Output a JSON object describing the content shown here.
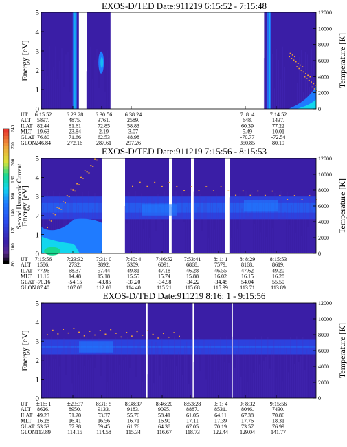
{
  "colors": {
    "background_blue": "#3a1ea6",
    "mid_blue": "#2a4ef0",
    "bright_blue": "#1f7bff",
    "cyan": "#12d6ee",
    "green": "#18d890",
    "yellow": "#d8e43a",
    "orange": "#f0a23a",
    "red": "#e83a2e",
    "gap": "#ffffff"
  },
  "colorbar": {
    "label": "Second Harmonic Current",
    "ticks": [
      "80",
      "100",
      "120",
      "140",
      "160",
      "180",
      "200",
      "220",
      "240"
    ],
    "range": [
      80,
      240
    ]
  },
  "chart_data": [
    {
      "type": "heatmap",
      "title": "EXOS-D/TED   Date:911219   6:15:52 - 7:15:48",
      "ylabel": "Energy [eV]",
      "ylabel_right": "Temperature [K]",
      "ylim": [
        0,
        5
      ],
      "yticks": [
        "0",
        "1",
        "2",
        "3",
        "4",
        "5"
      ],
      "ylim_right": [
        0,
        12000
      ],
      "yticks_right": [
        "0",
        "2000",
        "4000",
        "6000",
        "8000",
        "10000",
        "12000"
      ],
      "data_segments": [
        [
          0.0,
          0.137
        ],
        [
          0.165,
          0.252
        ],
        [
          0.811,
          1.0
        ]
      ],
      "features": [
        {
          "at": 0.122,
          "kind": "stripe"
        },
        {
          "at": 0.218,
          "kind": "spot",
          "level": 2.4
        },
        {
          "at": 0.83,
          "kind": "stripe"
        },
        {
          "at": 0.96,
          "kind": "rise",
          "level": 0.4
        }
      ],
      "temperature_trace": {
        "xrange": [
          0.9,
          1.0
        ],
        "yrange": [
          7000,
          2500
        ]
      },
      "table_rows": [
        {
          "label": "UT",
          "values": [
            "6:15:52",
            "6:23:28",
            "6:30:56",
            "6:38:24",
            "",
            "",
            "",
            "7: 8: 4",
            "7:14:52"
          ]
        },
        {
          "label": "ALT",
          "values": [
            "5897.",
            "4875.",
            "3761.",
            "2589.",
            "",
            "",
            "",
            "648.",
            "1437."
          ]
        },
        {
          "label": "ILAT",
          "values": [
            "82.44",
            "81.61",
            "72.85",
            "58.83",
            "",
            "",
            "",
            "60.39",
            "77.22"
          ]
        },
        {
          "label": "MLT",
          "values": [
            "19.63",
            "23.84",
            "2.19",
            "3.07",
            "",
            "",
            "",
            "5.49",
            "10.01"
          ]
        },
        {
          "label": "GLAT",
          "values": [
            "76.80",
            "71.66",
            "62.53",
            "48.98",
            "",
            "",
            "",
            "-70.77",
            "-72.54"
          ]
        },
        {
          "label": "GLON",
          "values": [
            "246.84",
            "272.16",
            "287.61",
            "297.26",
            "",
            "",
            "",
            "350.85",
            "80.19"
          ]
        }
      ]
    },
    {
      "type": "heatmap",
      "title": "EXOS-D/TED   Date:911219   7:15:56 - 8:15:53",
      "ylabel": "Energy [eV]",
      "ylabel_right": "Temperature [K]",
      "ylim": [
        0,
        5
      ],
      "yticks": [
        "0",
        "1",
        "2",
        "3",
        "4",
        "5"
      ],
      "ylim_right": [
        0,
        12000
      ],
      "yticks_right": [
        "0",
        "2000",
        "4000",
        "6000",
        "8000",
        "10000",
        "12000"
      ],
      "data_segments": [
        [
          0.0,
          0.222
        ],
        [
          0.305,
          0.465
        ],
        [
          0.475,
          0.545
        ],
        [
          0.555,
          0.67
        ],
        [
          0.685,
          1.0
        ]
      ],
      "features": [
        {
          "at": 0.04,
          "kind": "hot"
        },
        {
          "at": 0.43,
          "kind": "band",
          "level": 2.3
        },
        {
          "at": 0.8,
          "kind": "band",
          "level": 2.5
        }
      ],
      "temperature_trace": {
        "xrange": [
          0.02,
          0.2
        ],
        "yrange": [
          3800,
          12000
        ]
      },
      "temperature_trace_2": {
        "xrange": [
          0.33,
          1.0
        ],
        "yrange": [
          9000,
          7000
        ]
      },
      "table_rows": [
        {
          "label": "UT",
          "values": [
            "7:15:56",
            "7:23:32",
            "7:31: 0",
            "7:40: 4",
            "7:46:52",
            "7:53:41",
            "8: 1: 1",
            "8: 8:29",
            "8:15:53"
          ]
        },
        {
          "label": "ALT",
          "values": [
            "1586.",
            "2732.",
            "3892.",
            "5309.",
            "6091.",
            "6868.",
            "7579.",
            "8168.",
            "8619."
          ]
        },
        {
          "label": "ILAT",
          "values": [
            "77.96",
            "68.37",
            "57.44",
            "49.81",
            "47.18",
            "46.28",
            "46.55",
            "47.62",
            "49.20"
          ]
        },
        {
          "label": "MLT",
          "values": [
            "11.16",
            "14.48",
            "15.18",
            "15.55",
            "15.74",
            "15.88",
            "16.02",
            "16.15",
            "16.28"
          ]
        },
        {
          "label": "GLAT",
          "values": [
            "-70.16",
            "-54.15",
            "-43.85",
            "-37.20",
            "-34.98",
            "-34.22",
            "-34.45",
            "54.04",
            "55.50"
          ]
        },
        {
          "label": "GLON",
          "values": [
            "87.40",
            "107.08",
            "112.08",
            "114.40",
            "115.21",
            "115.68",
            "115.99",
            "113.71",
            "113.89"
          ]
        }
      ]
    },
    {
      "type": "heatmap",
      "title": "EXOS-D/TED   Date:911219   8:16: 1 - 9:15:56",
      "ylabel": "Energy [eV]",
      "ylabel_right": "Temperature [K]",
      "ylim": [
        0,
        5
      ],
      "yticks": [
        "0",
        "1",
        "2",
        "3",
        "4",
        "5"
      ],
      "ylim_right": [
        0,
        12000
      ],
      "yticks_right": [
        "0",
        "2000",
        "4000",
        "6000",
        "8000",
        "10000",
        "12000"
      ],
      "data_segments": [
        [
          0.0,
          0.382
        ],
        [
          0.387,
          0.551
        ],
        [
          0.555,
          0.693
        ],
        [
          0.697,
          1.0
        ]
      ],
      "features": [
        {
          "at": 0.2,
          "kind": "band",
          "level": 2.7
        }
      ],
      "temperature_trace": {
        "xrange": [
          0.02,
          0.5
        ],
        "yrange": [
          8500,
          8000
        ]
      },
      "table_rows": [
        {
          "label": "UT",
          "values": [
            "8:16: 1",
            "8:23:37",
            "8:31: 5",
            "8:38:37",
            "8:46:20",
            "8:53:28",
            "9: 1: 4",
            "9: 8:32",
            "9:15:56"
          ]
        },
        {
          "label": "ALT",
          "values": [
            "8626.",
            "8950.",
            "9133.",
            "9183.",
            "9095.",
            "8887.",
            "8531.",
            "8046.",
            "7430."
          ]
        },
        {
          "label": "ILAT",
          "values": [
            "49.23",
            "51.20",
            "53.37",
            "55.76",
            "58.41",
            "61.05",
            "64.11",
            "67.38",
            "70.86"
          ]
        },
        {
          "label": "MLT",
          "values": [
            "16.28",
            "16.41",
            "16.56",
            "16.71",
            "16.90",
            "17.11",
            "17.39",
            "17.76",
            "18.31"
          ]
        },
        {
          "label": "GLAT",
          "values": [
            "53.53",
            "57.38",
            "59.45",
            "61.76",
            "64.38",
            "67.05",
            "70.19",
            "73.57",
            "76.99"
          ]
        },
        {
          "label": "GLON",
          "values": [
            "113.89",
            "114.15",
            "114.58",
            "115.34",
            "116.67",
            "118.73",
            "122.44",
            "129.04",
            "141.77"
          ]
        }
      ]
    }
  ]
}
